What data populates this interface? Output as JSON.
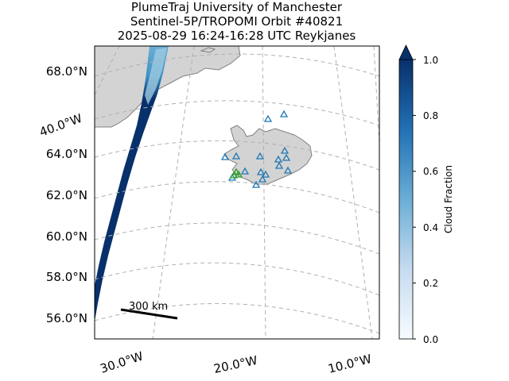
{
  "title": {
    "line1": "PlumeTraj    University of Manchester",
    "line2": "Sentinel-5P/TROPOMI Orbit #40821",
    "line3": "2025-08-29   16:24-16:28 UTC   Reykjanes"
  },
  "map": {
    "lat_labels": [
      "68.0°N",
      "64.0°N",
      "62.0°N",
      "60.0°N",
      "58.0°N",
      "56.0°N"
    ],
    "lon_labels_left": [
      "40.0°W"
    ],
    "lon_labels_bottom": [
      "30.0°W",
      "20.0°W",
      "10.0°W"
    ],
    "scale_bar_label": "300 km",
    "colors": {
      "land": "#d3d3d3",
      "coast": "#808080",
      "grid": "#b0b0b0",
      "volcano_marker": "#1f77b4",
      "active_marker": "#2ca02c"
    }
  },
  "colorbar": {
    "label": "Cloud Fraction",
    "ticks": [
      "0.0",
      "0.2",
      "0.4",
      "0.6",
      "0.8",
      "1.0"
    ],
    "range": [
      0.0,
      1.0
    ],
    "colormap": "Blues",
    "extend": "max"
  }
}
